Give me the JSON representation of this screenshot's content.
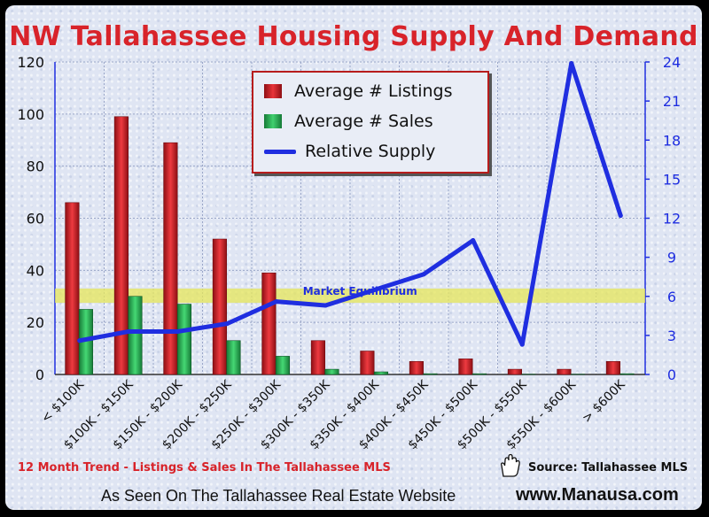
{
  "title": "NW Tallahassee Housing Supply And Demand",
  "footer": {
    "trend_note": "12 Month Trend - Listings & Sales In The Tallahassee MLS",
    "source": "Source: Tallahassee MLS",
    "seen_on": "As Seen On The Tallahassee Real Estate Website",
    "website": "www.Manausa.com"
  },
  "legend": {
    "listings": "Average # Listings",
    "sales": "Average # Sales",
    "supply": "Relative Supply"
  },
  "colors": {
    "listings": "#d8232a",
    "sales": "#2fb85a",
    "supply": "#1f2ee0",
    "title": "#d8232a",
    "equilibrium_band": "#e6e65a"
  },
  "chart_data": {
    "type": "bar",
    "categories": [
      "< $100K",
      "$100K - $150K",
      "$150K - $200K",
      "$200K - $250K",
      "$250K - $300K",
      "$300K - $350K",
      "$350K - $400K",
      "$400K - $450K",
      "$450K - $500K",
      "$500K - $550K",
      "$550K - $600K",
      "> $600K"
    ],
    "series": [
      {
        "name": "Average # Listings",
        "type": "bar",
        "axis": "left",
        "values": [
          66,
          99,
          89,
          52,
          39,
          13,
          9,
          5,
          6,
          2,
          2,
          5
        ]
      },
      {
        "name": "Average # Sales",
        "type": "bar",
        "axis": "left",
        "values": [
          25,
          30,
          27,
          13,
          7,
          2,
          1,
          0.3,
          0.3,
          0.1,
          0.1,
          0.3
        ]
      },
      {
        "name": "Relative Supply",
        "type": "line",
        "axis": "right",
        "values": [
          2.6,
          3.3,
          3.3,
          3.9,
          5.6,
          5.3,
          6.5,
          7.7,
          10.3,
          2.3,
          23.9,
          12.2
        ]
      }
    ],
    "yleft": {
      "min": 0,
      "max": 120,
      "ticks": [
        0,
        20,
        40,
        60,
        80,
        100,
        120
      ]
    },
    "yright": {
      "min": 0,
      "max": 24,
      "ticks": [
        0,
        3,
        6,
        9,
        12,
        15,
        18,
        21,
        24
      ]
    },
    "annotation": {
      "label": "Market Equilibrium",
      "value_right": 6,
      "band_right": [
        5.5,
        6.6
      ]
    },
    "grid": true,
    "legend_position": "top-center"
  }
}
